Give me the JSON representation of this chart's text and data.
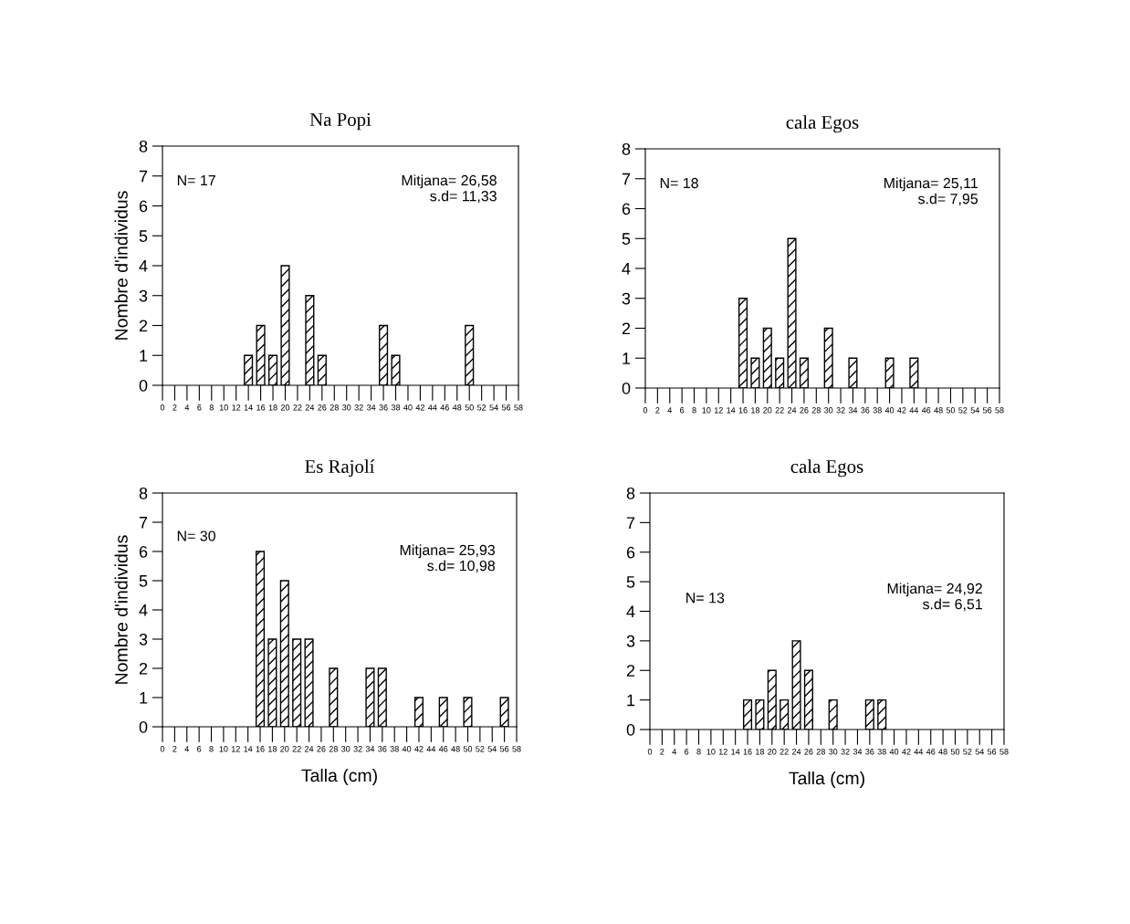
{
  "chart_data": [
    {
      "type": "bar",
      "title": "Na Popi",
      "ylabel": "Nombre d'individus",
      "x": [
        14,
        16,
        18,
        20,
        24,
        26,
        36,
        38,
        50
      ],
      "values": [
        1,
        2,
        1,
        4,
        3,
        1,
        2,
        1,
        2
      ],
      "color": "#000000",
      "xlim": [
        0,
        58
      ],
      "xticks": [
        0,
        2,
        4,
        6,
        8,
        10,
        12,
        14,
        16,
        18,
        20,
        22,
        24,
        26,
        28,
        30,
        32,
        34,
        36,
        38,
        40,
        42,
        44,
        46,
        48,
        50,
        52,
        54,
        56,
        58
      ],
      "ylim": [
        0,
        8
      ],
      "yticks": [
        0,
        1,
        2,
        3,
        4,
        5,
        6,
        7,
        8
      ],
      "grid": false,
      "legend": false,
      "annotations": [
        "N= 17",
        "Mitjana= 26,58\ns.d= 11,33"
      ]
    },
    {
      "type": "bar",
      "title": "cala Egos",
      "x": [
        16,
        18,
        20,
        22,
        24,
        26,
        30,
        34,
        40,
        44
      ],
      "values": [
        3,
        1,
        2,
        1,
        5,
        1,
        2,
        1,
        1,
        1
      ],
      "color": "#000000",
      "xlim": [
        0,
        58
      ],
      "xticks": [
        0,
        2,
        4,
        6,
        8,
        10,
        12,
        14,
        16,
        18,
        20,
        22,
        24,
        26,
        28,
        30,
        32,
        34,
        36,
        38,
        40,
        42,
        44,
        46,
        48,
        50,
        52,
        54,
        56,
        58
      ],
      "ylim": [
        0,
        8
      ],
      "yticks": [
        0,
        1,
        2,
        3,
        4,
        5,
        6,
        7,
        8
      ],
      "grid": false,
      "legend": false,
      "annotations": [
        "N= 18",
        "Mitjana= 25,11\ns.d= 7,95"
      ]
    },
    {
      "type": "bar",
      "title": "Es Rajolí",
      "xlabel": "Talla (cm)",
      "ylabel": "Nombre d'individus",
      "x": [
        16,
        18,
        20,
        22,
        24,
        28,
        34,
        36,
        42,
        46,
        50,
        56
      ],
      "values": [
        6,
        3,
        5,
        3,
        3,
        2,
        2,
        2,
        1,
        1,
        1,
        1
      ],
      "color": "#000000",
      "xlim": [
        0,
        58
      ],
      "xticks": [
        0,
        2,
        4,
        6,
        8,
        10,
        12,
        14,
        16,
        18,
        20,
        22,
        24,
        26,
        28,
        30,
        32,
        34,
        36,
        38,
        40,
        42,
        44,
        46,
        48,
        50,
        52,
        54,
        56,
        58
      ],
      "ylim": [
        0,
        8
      ],
      "yticks": [
        0,
        1,
        2,
        3,
        4,
        5,
        6,
        7,
        8
      ],
      "grid": false,
      "legend": false,
      "annotations": [
        "N= 30",
        "Mitjana= 25,93\ns.d= 10,98"
      ]
    },
    {
      "type": "bar",
      "title": "cala Egos",
      "xlabel": "Talla (cm)",
      "x": [
        16,
        18,
        20,
        22,
        24,
        26,
        30,
        36,
        38
      ],
      "values": [
        1,
        1,
        2,
        1,
        3,
        2,
        1,
        1,
        1
      ],
      "color": "#000000",
      "xlim": [
        0,
        58
      ],
      "xticks": [
        0,
        2,
        4,
        6,
        8,
        10,
        12,
        14,
        16,
        18,
        20,
        22,
        24,
        26,
        28,
        30,
        32,
        34,
        36,
        38,
        40,
        42,
        44,
        46,
        48,
        50,
        52,
        54,
        56,
        58
      ],
      "ylim": [
        0,
        8
      ],
      "yticks": [
        0,
        1,
        2,
        3,
        4,
        5,
        6,
        7,
        8
      ],
      "grid": false,
      "legend": false,
      "annotations": [
        "N= 13",
        "Mitjana= 24,92\ns.d= 6,51"
      ]
    }
  ]
}
